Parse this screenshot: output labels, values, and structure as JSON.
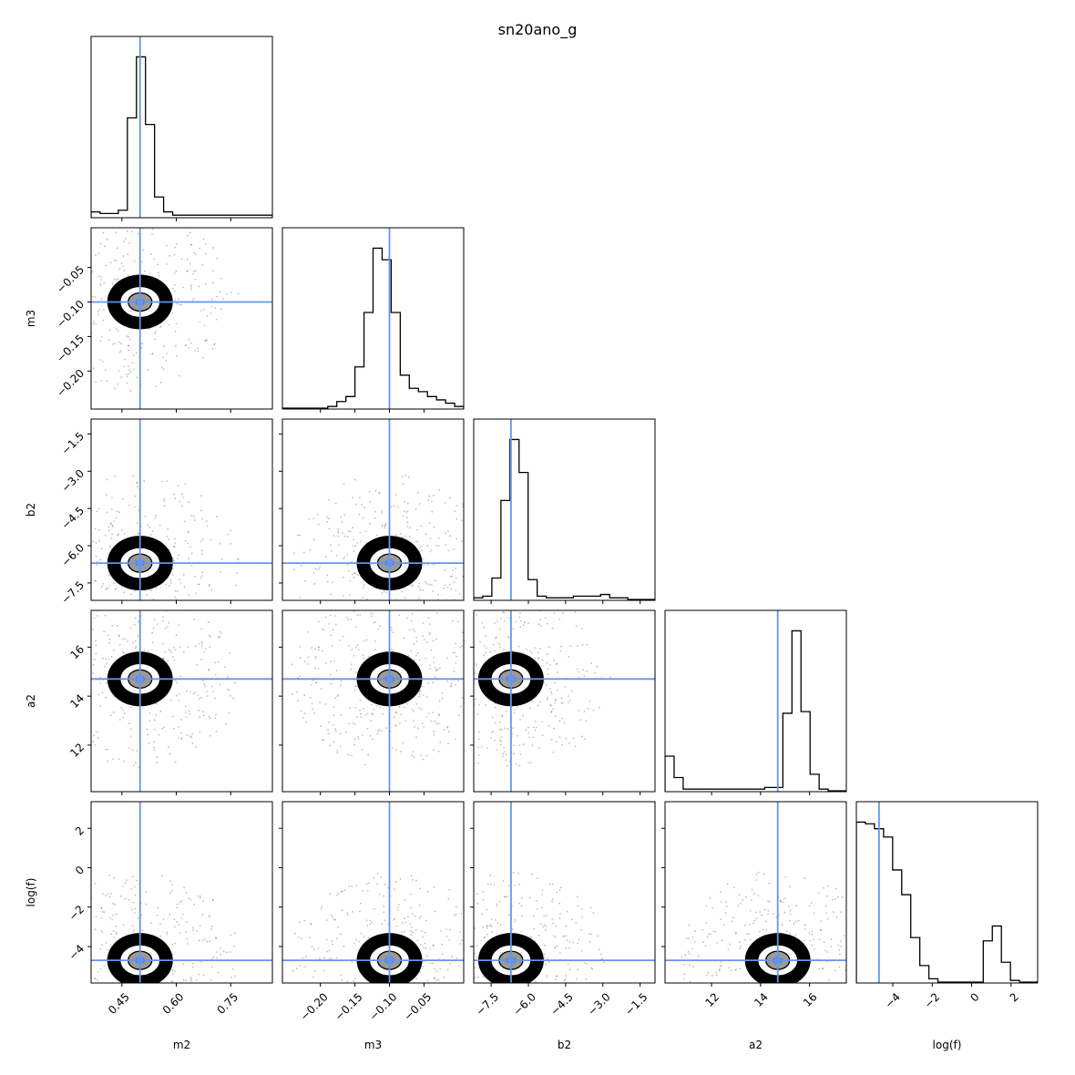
{
  "chart_data": {
    "type": "corner",
    "title": "sn20ano_g",
    "parameters": [
      {
        "name": "m2",
        "label": "m2",
        "range": [
          0.365,
          0.865
        ],
        "ticks": [
          0.45,
          0.6,
          0.75
        ],
        "tick_labels": [
          "0.45",
          "0.60",
          "0.75"
        ],
        "truth": 0.5
      },
      {
        "name": "m3",
        "label": "m3",
        "range": [
          -0.255,
          0.0075
        ],
        "ticks": [
          -0.2,
          -0.15,
          -0.1,
          -0.05
        ],
        "tick_labels": [
          "−0.20",
          "−0.15",
          "−0.10",
          "−0.05"
        ],
        "truth": -0.1
      },
      {
        "name": "b2",
        "label": "b2",
        "range": [
          -8.2,
          -0.9
        ],
        "ticks": [
          -7.5,
          -6.0,
          -4.5,
          -3.0,
          -1.5
        ],
        "tick_labels": [
          "−7.5",
          "−6.0",
          "−4.5",
          "−3.0",
          "−1.5"
        ],
        "truth": -6.7
      },
      {
        "name": "a2",
        "label": "a2",
        "range": [
          10.1,
          17.5
        ],
        "ticks": [
          12,
          14,
          16
        ],
        "tick_labels": [
          "12",
          "14",
          "16"
        ],
        "truth": 14.7
      },
      {
        "name": "logf",
        "label": "log(f)",
        "range": [
          -5.85,
          3.35
        ],
        "ticks": [
          -4,
          -2,
          0,
          2
        ],
        "tick_labels": [
          "−4",
          "−2",
          "0",
          "2"
        ],
        "truth": -4.7
      }
    ],
    "histograms": {
      "m2": [
        0.03,
        0.02,
        0.02,
        0.04,
        0.6,
        0.97,
        0.56,
        0.12,
        0.03,
        0.01,
        0.01,
        0.01,
        0.01,
        0.01,
        0.01,
        0.01,
        0.01,
        0.01,
        0.01,
        0.01
      ],
      "m3": [
        0.0,
        0.0,
        0.0,
        0.0,
        0.0,
        0.01,
        0.04,
        0.07,
        0.25,
        0.58,
        0.97,
        0.9,
        0.58,
        0.2,
        0.12,
        0.1,
        0.07,
        0.05,
        0.03,
        0.01
      ],
      "b2": [
        0.01,
        0.02,
        0.13,
        0.6,
        0.97,
        0.77,
        0.12,
        0.02,
        0.01,
        0.01,
        0.01,
        0.02,
        0.02,
        0.02,
        0.03,
        0.01,
        0.01,
        0.0,
        0.0,
        0.0
      ],
      "a2": [
        0.21,
        0.08,
        0.01,
        0.01,
        0.01,
        0.01,
        0.01,
        0.01,
        0.01,
        0.01,
        0.01,
        0.02,
        0.02,
        0.47,
        0.97,
        0.48,
        0.1,
        0.01,
        0.0,
        0.0
      ],
      "logf": [
        0.97,
        0.96,
        0.93,
        0.88,
        0.68,
        0.53,
        0.27,
        0.1,
        0.02,
        0.0,
        0.0,
        0.0,
        0.0,
        0.0,
        0.25,
        0.34,
        0.12,
        0.01,
        0.0,
        0.0
      ]
    },
    "truth_color": "#6495ed",
    "hist_color": "#000000"
  }
}
